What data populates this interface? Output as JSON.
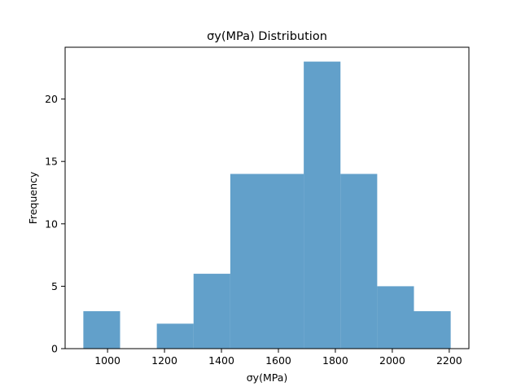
{
  "chart_data": {
    "type": "bar",
    "title": "σy(MPa) Distribution",
    "xlabel": "σy(MPa)",
    "ylabel": "Frequency",
    "bins": [
      {
        "x0": 915,
        "x1": 1044,
        "count": 3
      },
      {
        "x0": 1044,
        "x1": 1173,
        "count": 0
      },
      {
        "x0": 1173,
        "x1": 1302,
        "count": 2
      },
      {
        "x0": 1302,
        "x1": 1431,
        "count": 6
      },
      {
        "x0": 1431,
        "x1": 1560,
        "count": 14
      },
      {
        "x0": 1560,
        "x1": 1689,
        "count": 14
      },
      {
        "x0": 1689,
        "x1": 1818,
        "count": 23
      },
      {
        "x0": 1818,
        "x1": 1947,
        "count": 14
      },
      {
        "x0": 1947,
        "x1": 2076,
        "count": 5
      },
      {
        "x0": 2076,
        "x1": 2205,
        "count": 3
      }
    ],
    "xlim": [
      851,
      2269
    ],
    "ylim": [
      0,
      24.15
    ],
    "xticks": [
      1000,
      1200,
      1400,
      1600,
      1800,
      2000,
      2200
    ],
    "yticks": [
      0,
      5,
      10,
      15,
      20
    ],
    "bar_color": "#1f77b4",
    "bar_alpha": 0.7,
    "grid": false
  }
}
